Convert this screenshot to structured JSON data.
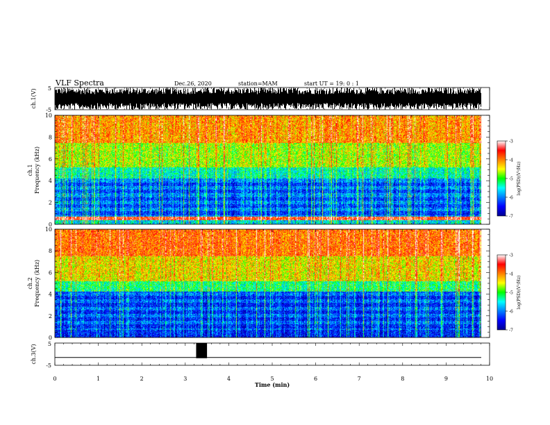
{
  "header": {
    "title": "VLF Spectra",
    "date": "Dec.26, 2020",
    "station": "station=MAM",
    "start": "start  UT =   19: 0  : 1"
  },
  "chart_data": [
    {
      "type": "line",
      "panel": "ch1-waveform",
      "ylabel": "ch.1(V)",
      "ylim": [
        -5,
        5
      ],
      "yticks": [
        "5",
        "-5"
      ],
      "xlim": [
        0,
        10
      ],
      "description_values": {
        "amplitude_range_V": [
          -5,
          5
        ],
        "behavior": "dense broadband noise filling most of the range"
      }
    },
    {
      "type": "heatmap",
      "panel": "ch1-spectrogram",
      "ylabel_line1": "ch.1",
      "ylabel_line2": "Frequency  (kHz)",
      "ylim": [
        0,
        10
      ],
      "yticks": [
        "0",
        "2",
        "4",
        "6",
        "8",
        "10"
      ],
      "xlim": [
        0,
        9.83
      ],
      "colorbar": {
        "label": "log(PSD)(V²/Hz)",
        "ticks": [
          "-3",
          "-4",
          "-5",
          "-6",
          "-7"
        ],
        "range": [
          -7,
          -3
        ]
      },
      "profile_log_psd": {
        "0-0.5kHz": -5.5,
        "0.5kHz": -3.4,
        "1-4kHz": -6.3,
        "5kHz": -5.2,
        "6-7kHz": -4.5,
        "8-10kHz": -4.0
      }
    },
    {
      "type": "heatmap",
      "panel": "ch2-spectrogram",
      "ylabel_line1": "ch.2",
      "ylabel_line2": "Frequency  (kHz)",
      "ylim": [
        0,
        10
      ],
      "yticks": [
        "0",
        "2",
        "4",
        "6",
        "8",
        "10"
      ],
      "xlim": [
        0,
        9.83
      ],
      "colorbar": {
        "label": "log(PSD)(V²/Hz)",
        "ticks": [
          "-3",
          "-4",
          "-5",
          "-6",
          "-7"
        ],
        "range": [
          -7,
          -3
        ]
      },
      "profile_log_psd": {
        "0-4kHz": -6.4,
        "5kHz": -5.0,
        "6-7kHz": -4.3,
        "8-10kHz": -3.8
      }
    },
    {
      "type": "line",
      "panel": "ch3-signal",
      "ylabel": "ch.3(V)",
      "ylim": [
        -5,
        5
      ],
      "yticks": [
        "5",
        "-5"
      ],
      "xlim": [
        0,
        10
      ],
      "baseline_V": -1.5,
      "pulse": {
        "t_start_min": 3.25,
        "t_end_min": 3.5,
        "top_V": 5
      }
    }
  ],
  "xaxis": {
    "label": "Time  (min)",
    "ticks": [
      "0",
      "1",
      "2",
      "3",
      "4",
      "5",
      "6",
      "7",
      "8",
      "9",
      "10"
    ],
    "range": [
      0,
      10
    ]
  }
}
